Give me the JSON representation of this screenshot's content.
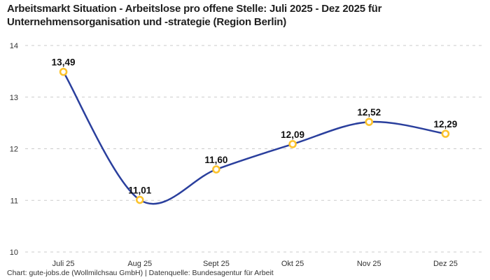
{
  "page": {
    "title": "Arbeitsmarkt Situation - Arbeitslose pro offene Stelle: Juli 2025 - Dez 2025 für Unternehmensorganisation und -strategie (Region Berlin)",
    "footer": "Chart: gute-jobs.de (Wollmilchsau GmbH) | Datenquelle: Bundesagentur für Arbeit"
  },
  "chart_data": {
    "type": "line",
    "title": "Arbeitsmarkt Situation - Arbeitslose pro offene Stelle: Juli 2025 - Dez 2025 für Unternehmensorganisation und -strategie (Region Berlin)",
    "categories": [
      "Juli 25",
      "Aug 25",
      "Sept 25",
      "Okt 25",
      "Nov 25",
      "Dez 25"
    ],
    "values": [
      13.49,
      11.01,
      11.6,
      12.09,
      12.52,
      12.29
    ],
    "value_labels": [
      "13,49",
      "11,01",
      "11,60",
      "12,09",
      "12,52",
      "12,29"
    ],
    "xlabel": "",
    "ylabel": "",
    "ylim": [
      10,
      14
    ],
    "yticks": [
      10,
      11,
      12,
      13,
      14
    ],
    "ytick_labels": [
      "10",
      "11",
      "12",
      "13",
      "14"
    ],
    "grid": "horizontal-dashed",
    "legend": "none",
    "line_color": "#2a3f9d",
    "marker_stroke_color": "#fcc32d",
    "marker_fill_color": "#ffffff",
    "grid_color": "#cbcbcb",
    "value_label_color": "#111111",
    "axis_text_color": "#333333"
  }
}
